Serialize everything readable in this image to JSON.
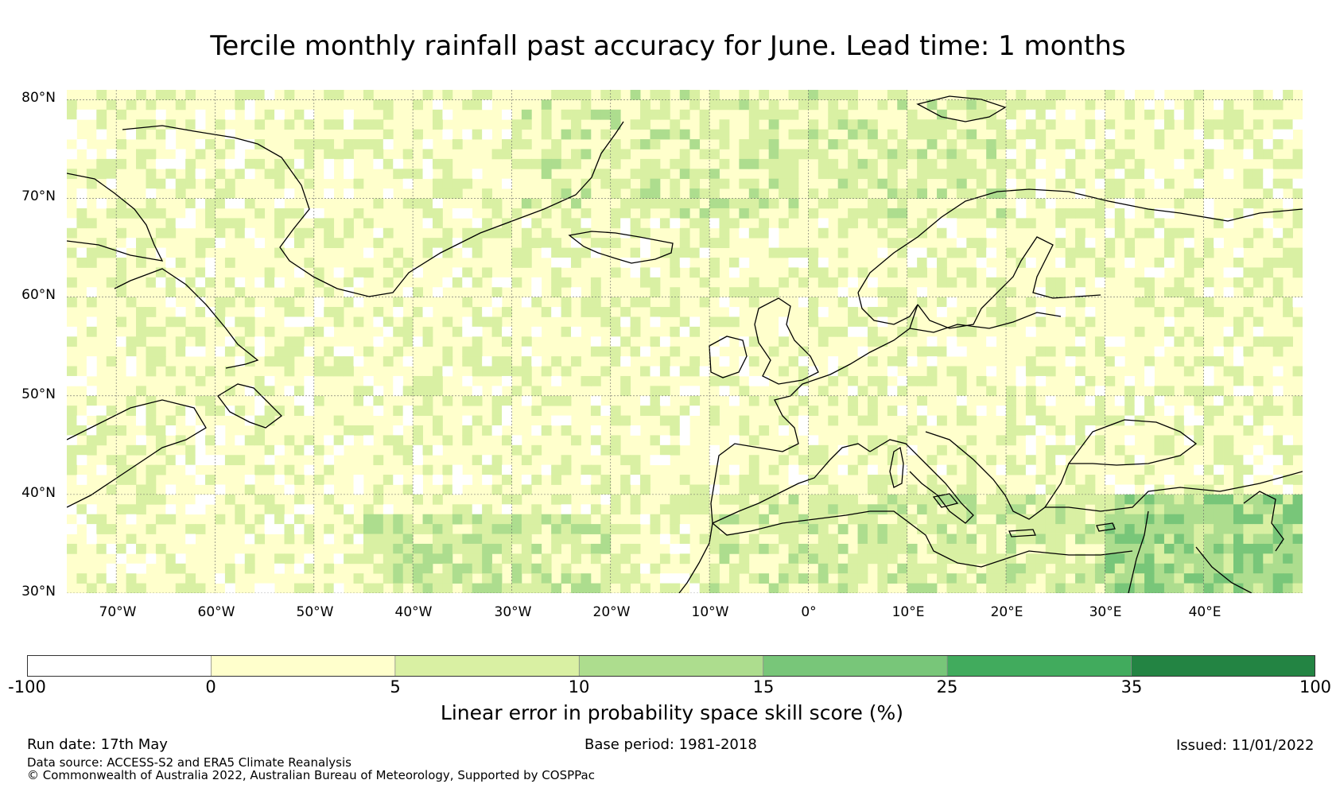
{
  "title": "Tercile monthly rainfall past accuracy for June. Lead time: 1 months",
  "map": {
    "lat_labels": [
      "80°N",
      "70°N",
      "60°N",
      "50°N",
      "40°N",
      "30°N"
    ],
    "lon_labels": [
      "70°W",
      "60°W",
      "50°W",
      "40°W",
      "30°W",
      "20°W",
      "10°W",
      "0°",
      "10°E",
      "20°E",
      "30°E",
      "40°E"
    ],
    "extent": {
      "lon_min": -75,
      "lon_max": 50,
      "lat_min": 30,
      "lat_max": 81
    }
  },
  "colorbar": {
    "ticks": [
      "-100",
      "0",
      "5",
      "10",
      "15",
      "25",
      "35",
      "100"
    ],
    "colors": [
      "#ffffff",
      "#ffffcc",
      "#d9f0a3",
      "#addd8e",
      "#78c679",
      "#41ab5d",
      "#238443"
    ],
    "label": "Linear error in probability space skill score (%)"
  },
  "footer": {
    "run_date": "Run date: 17th May",
    "base_period": "Base period: 1981-2018",
    "issued": "Issued: 11/01/2022",
    "data_source": "Data source: ACCESS-S2 and ERA5 Climate Reanalysis",
    "copyright": "© Commonwealth of Australia 2022, Australian Bureau of Meteorology, Supported by COSPPac"
  }
}
